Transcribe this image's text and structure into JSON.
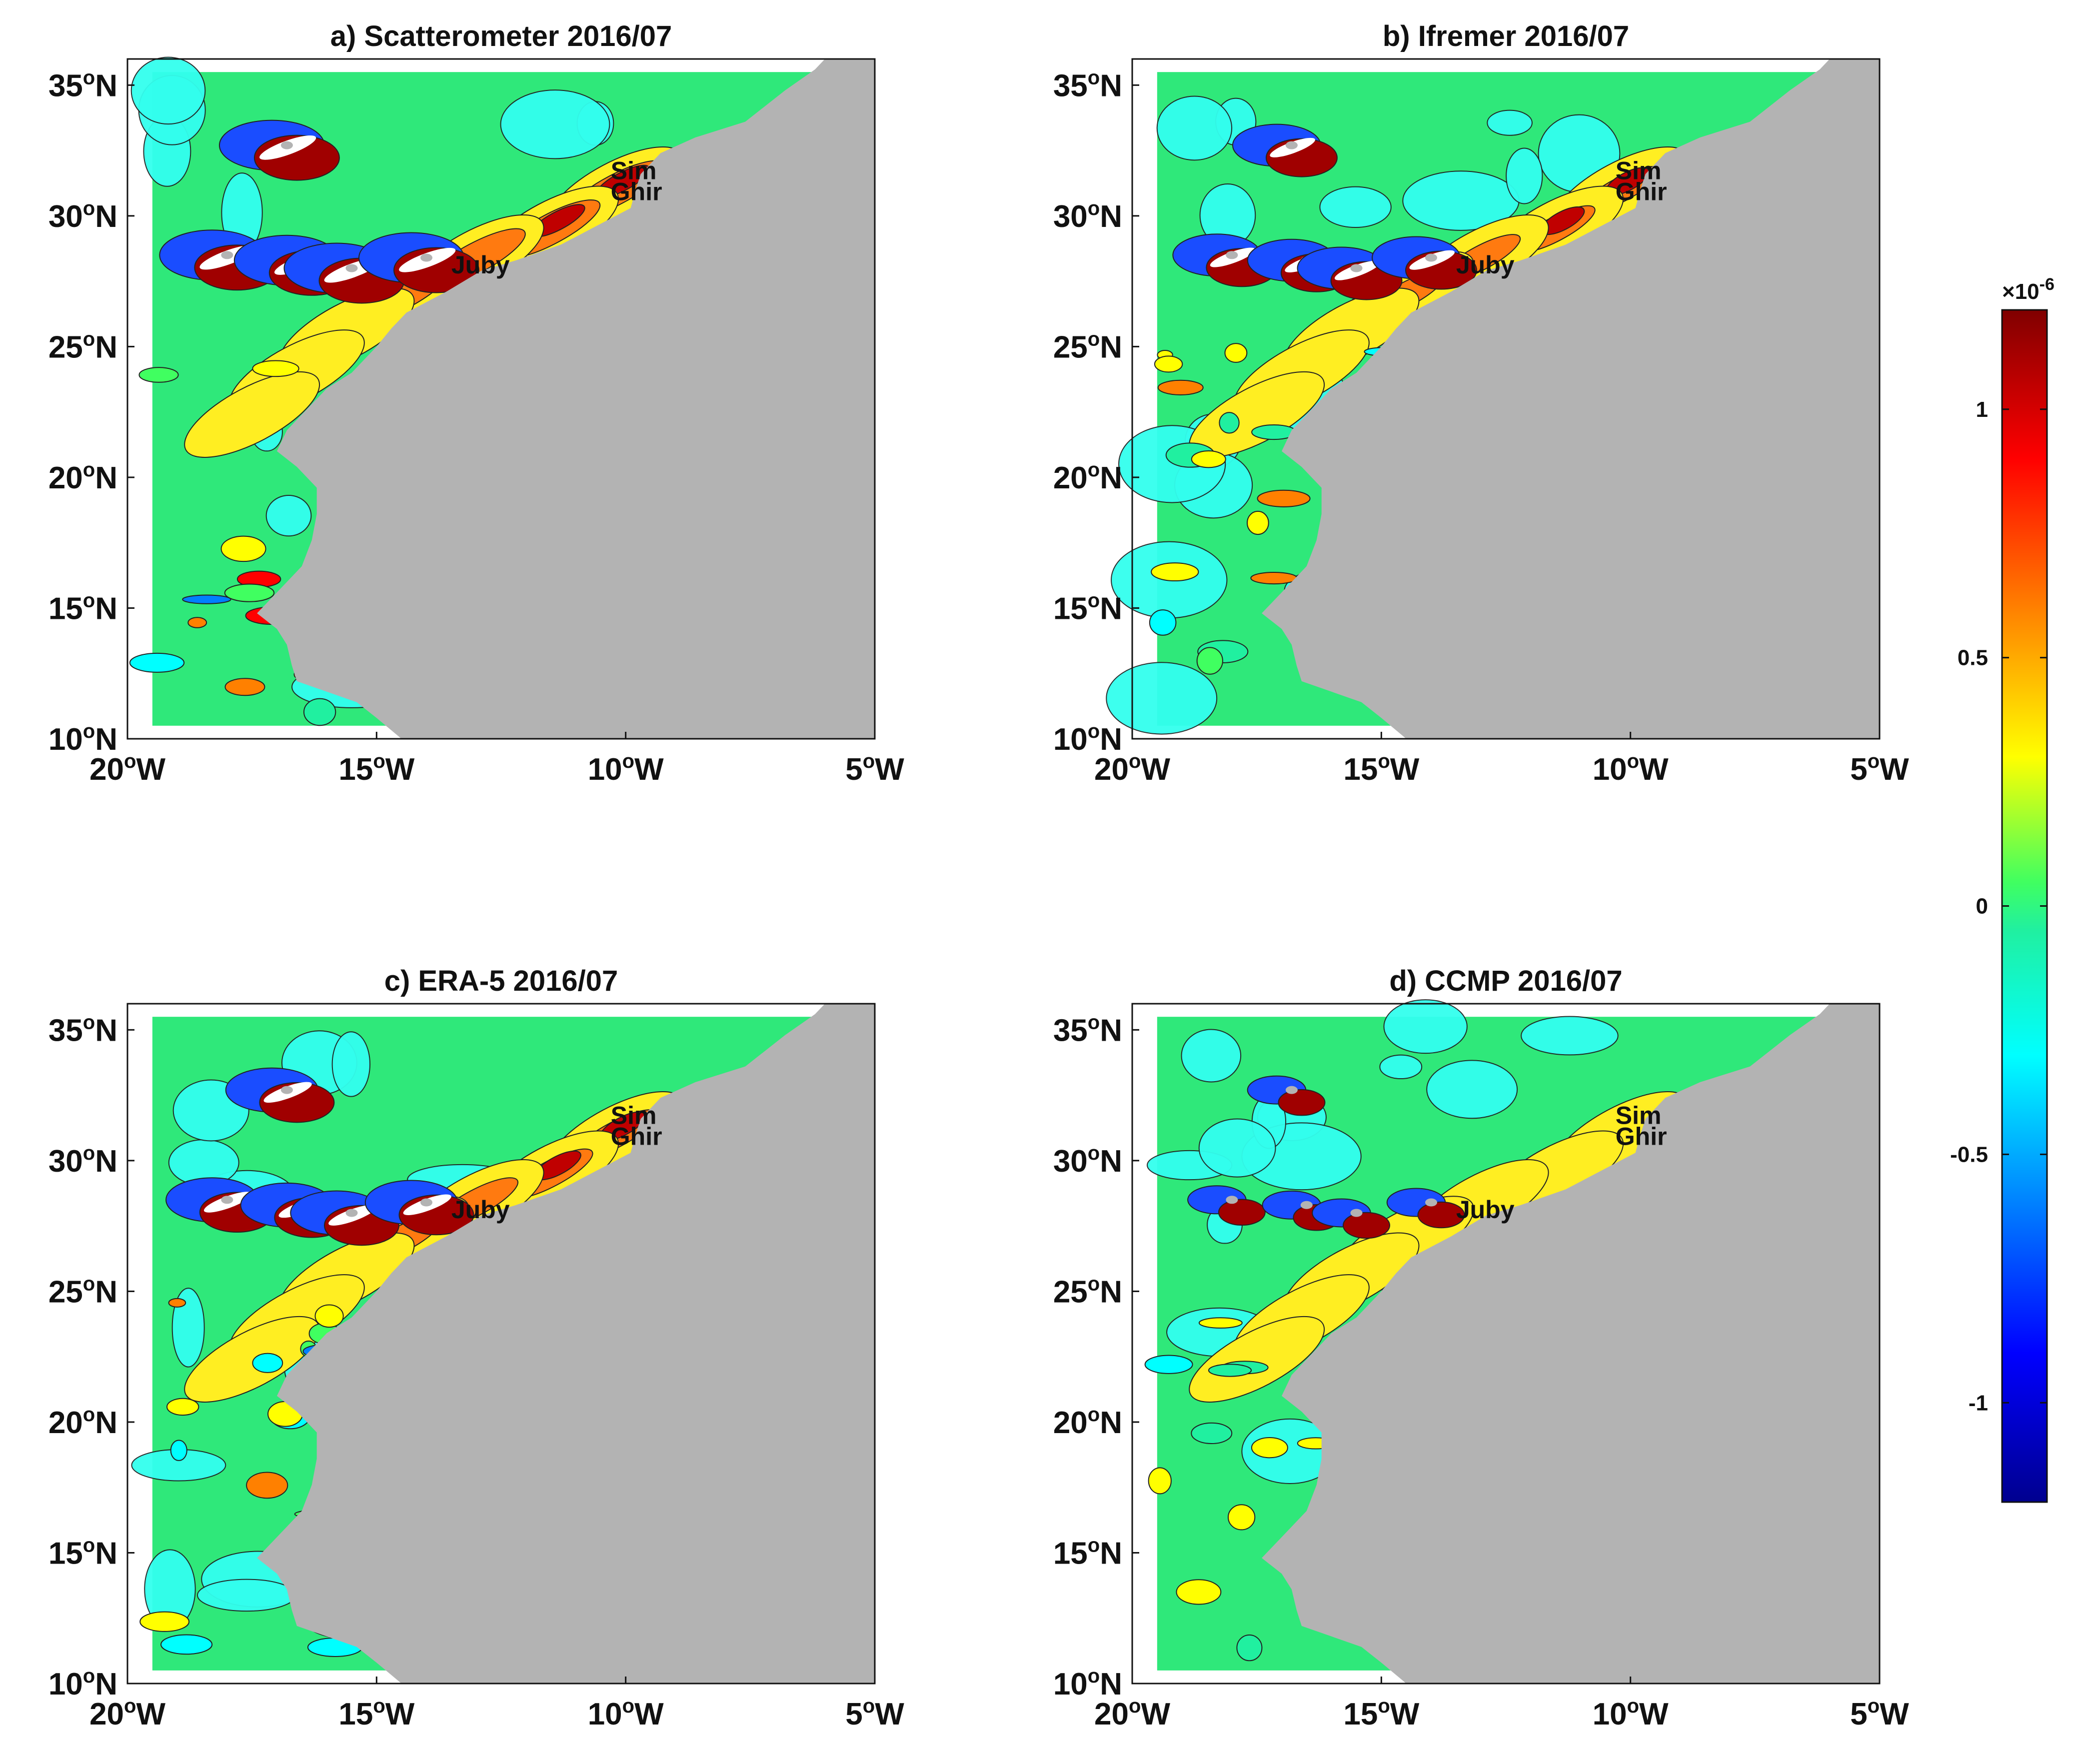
{
  "panels": [
    {
      "id": "a",
      "title": "a) Scatterometer 2016/07",
      "intensity": 1.0
    },
    {
      "id": "b",
      "title": "b) Ifremer 2016/07",
      "intensity": 0.8
    },
    {
      "id": "c",
      "title": "c) ERA-5 2016/07",
      "intensity": 0.85
    },
    {
      "id": "d",
      "title": "d) CCMP 2016/07",
      "intensity": 0.45
    }
  ],
  "map": {
    "lon_range": [
      -20,
      -5
    ],
    "lat_range": [
      10,
      36
    ],
    "lon_ticks": [
      {
        "value": -20,
        "label": "20°W"
      },
      {
        "value": -15,
        "label": "15°W"
      },
      {
        "value": -10,
        "label": "10°W"
      },
      {
        "value": -5,
        "label": "5°W"
      }
    ],
    "lat_ticks": [
      {
        "value": 10,
        "label": "10°N"
      },
      {
        "value": 15,
        "label": "15°N"
      },
      {
        "value": 20,
        "label": "20°N"
      },
      {
        "value": 25,
        "label": "25°N"
      },
      {
        "value": 30,
        "label": "30°N"
      },
      {
        "value": 35,
        "label": "35°N"
      }
    ],
    "places": [
      {
        "name": "Sim",
        "lon": -10.3,
        "lat": 31.4
      },
      {
        "name": "Ghir",
        "lon": -10.3,
        "lat": 30.6
      },
      {
        "name": "Juby",
        "lon": -13.5,
        "lat": 27.8
      }
    ],
    "land_color": "#b3b3b3"
  },
  "colorbar": {
    "multiplier": "×10",
    "exponent": "-6",
    "range": [
      -1.2,
      1.2
    ],
    "ticks": [
      {
        "value": 1,
        "label": "1"
      },
      {
        "value": 0.5,
        "label": "0.5"
      },
      {
        "value": 0,
        "label": "0"
      },
      {
        "value": -0.5,
        "label": "-0.5"
      },
      {
        "value": -1,
        "label": "-1"
      }
    ],
    "colormap": "jet"
  },
  "chart_data": [
    {
      "type": "heatmap",
      "title": "a) Scatterometer 2016/07",
      "xlim": [
        -20,
        -5
      ],
      "ylim": [
        10,
        36
      ],
      "zlim": [
        -1.2e-06,
        1.2e-06
      ]
    },
    {
      "type": "heatmap",
      "title": "b) Ifremer 2016/07",
      "xlim": [
        -20,
        -5
      ],
      "ylim": [
        10,
        36
      ],
      "zlim": [
        -1.2e-06,
        1.2e-06
      ]
    },
    {
      "type": "heatmap",
      "title": "c) ERA-5 2016/07",
      "xlim": [
        -20,
        -5
      ],
      "ylim": [
        10,
        36
      ],
      "zlim": [
        -1.2e-06,
        1.2e-06
      ]
    },
    {
      "type": "heatmap",
      "title": "d) CCMP 2016/07",
      "xlim": [
        -20,
        -5
      ],
      "ylim": [
        10,
        36
      ],
      "zlim": [
        -1.2e-06,
        1.2e-06
      ]
    }
  ]
}
